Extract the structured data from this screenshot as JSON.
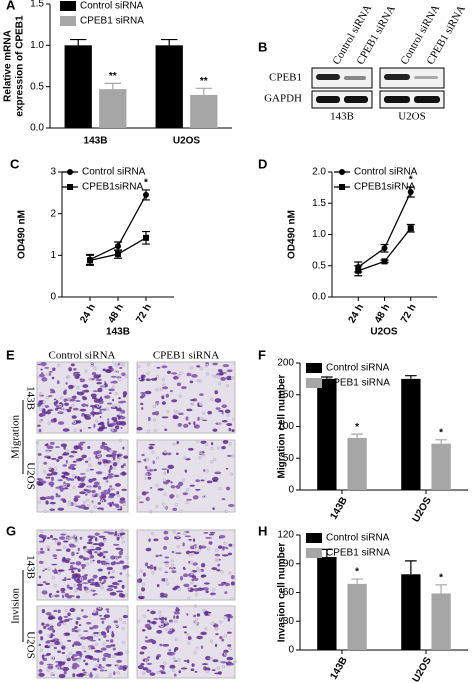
{
  "chart_data": [
    {
      "panel": "A",
      "type": "bar",
      "ylabel": [
        "Relative mRNA",
        "expression of CPEB1"
      ],
      "categories": [
        "143B",
        "U2OS"
      ],
      "series": [
        {
          "name": "Control siRNA",
          "color": "#000000",
          "values": [
            1.0,
            1.0
          ],
          "errors": [
            0.07,
            0.07
          ],
          "annotations": [
            null,
            null
          ]
        },
        {
          "name": "CPEB1 siRNA",
          "color": "#a6a6a6",
          "values": [
            0.47,
            0.4
          ],
          "errors": [
            0.07,
            0.08
          ],
          "annotations": [
            "**",
            "**"
          ]
        }
      ],
      "ylim": [
        0,
        1.5
      ],
      "yticks": [
        {
          "value": 0,
          "label": "0.0"
        },
        0.5,
        {
          "value": 1,
          "label": "1.0"
        },
        1.5
      ]
    },
    {
      "panel": "C",
      "type": "line",
      "ylabel": [
        "OD490 nM"
      ],
      "xlabel": "143B",
      "categories": [
        "24 h",
        "48 h",
        "72 h"
      ],
      "series": [
        {
          "name": "Control siRNA",
          "color": "#000000",
          "marker": "circle",
          "values": [
            0.9,
            1.22,
            2.45
          ],
          "errors": [
            0.12,
            0.1,
            0.12
          ],
          "annotations": [
            null,
            null,
            "*"
          ]
        },
        {
          "name": "CPEB1siRNA",
          "color": "#000000",
          "marker": "square",
          "values": [
            0.88,
            1.03,
            1.42
          ],
          "errors": [
            0.12,
            0.1,
            0.15
          ],
          "annotations": [
            null,
            null,
            null
          ]
        }
      ],
      "ylim": [
        0,
        3
      ],
      "yticks": [
        0,
        1,
        2,
        3
      ]
    },
    {
      "panel": "D",
      "type": "line",
      "ylabel": [
        "OD490 nM"
      ],
      "xlabel": "U2OS",
      "categories": [
        "24 h",
        "48 h",
        "72 h"
      ],
      "series": [
        {
          "name": "Control siRNA",
          "color": "#000000",
          "marker": "circle",
          "values": [
            0.48,
            0.78,
            1.68
          ],
          "errors": [
            0.08,
            0.06,
            0.08
          ],
          "annotations": [
            null,
            null,
            "*"
          ]
        },
        {
          "name": "CPEB1siRNA",
          "color": "#000000",
          "marker": "square",
          "values": [
            0.42,
            0.57,
            1.1
          ],
          "errors": [
            0.08,
            0.02,
            0.06
          ],
          "annotations": [
            null,
            null,
            null
          ]
        }
      ],
      "ylim": [
        0,
        2
      ],
      "yticks": [
        {
          "value": 0,
          "label": "0.0"
        },
        0.5,
        {
          "value": 1,
          "label": "1.0"
        },
        1.5,
        {
          "value": 2,
          "label": "2.0"
        }
      ]
    },
    {
      "panel": "F",
      "type": "bar",
      "ylabel": [
        "Migration cell number"
      ],
      "categories": [
        "143B",
        "U2OS"
      ],
      "series": [
        {
          "name": "Control siRNA",
          "color": "#000000",
          "values": [
            175,
            175
          ],
          "errors": [
            3,
            5
          ],
          "annotations": [
            null,
            null
          ]
        },
        {
          "name": "CPEB1 siRNA",
          "color": "#a6a6a6",
          "values": [
            82,
            73
          ],
          "errors": [
            6,
            6
          ],
          "annotations": [
            "*",
            "*"
          ]
        }
      ],
      "ylim": [
        0,
        200
      ],
      "yticks": [
        0,
        50,
        100,
        150,
        200
      ]
    },
    {
      "panel": "H",
      "type": "bar",
      "ylabel": [
        "Invasion cell number"
      ],
      "categories": [
        "143B",
        "U2OS"
      ],
      "series": [
        {
          "name": "Control siRNA",
          "color": "#000000",
          "values": [
            97,
            79
          ],
          "errors": [
            8,
            14
          ],
          "annotations": [
            null,
            null
          ]
        },
        {
          "name": "CPEB1 siRNA",
          "color": "#a6a6a6",
          "values": [
            69,
            59
          ],
          "errors": [
            5,
            9
          ],
          "annotations": [
            "*",
            "*"
          ]
        }
      ],
      "ylim": [
        0,
        120
      ],
      "yticks": [
        0,
        30,
        60,
        90,
        120
      ]
    }
  ],
  "blot": {
    "panel": "B",
    "columns": [
      "Control siRNA",
      "CPEB1 siRNA",
      "Control siRNA",
      "CPEB1 siRNA"
    ],
    "rows": [
      "CPEB1",
      "GAPDH"
    ],
    "groups": [
      "143B",
      "U2OS"
    ]
  },
  "micrographs": [
    {
      "panel": "E",
      "columns": [
        "Control siRNA",
        "CPEB1 siRNA"
      ],
      "rows": [
        "143B",
        "U2OS"
      ],
      "group": "Migration"
    },
    {
      "panel": "G",
      "rows": [
        "143B",
        "U2OS"
      ],
      "group": "Invision"
    }
  ]
}
